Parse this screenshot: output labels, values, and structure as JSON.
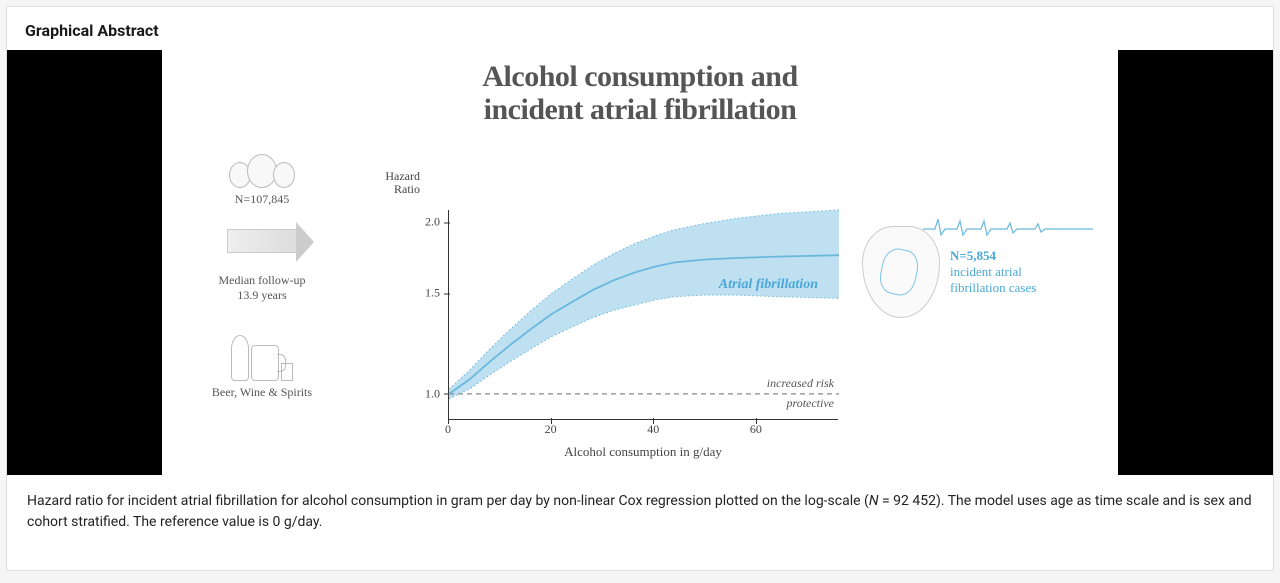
{
  "section_title": "Graphical Abstract",
  "figure": {
    "title_line1": "Alcohol consumption and",
    "title_line2": "incident atrial fibrillation",
    "title_color": "#555555",
    "title_fontsize": 30,
    "left": {
      "n_label": "N=107,845",
      "followup_line1": "Median follow-up",
      "followup_line2": "13.9 years",
      "drinks_label": "Beer, Wine & Spirits"
    },
    "right": {
      "n_label": "N=5,854",
      "text_line1": "incident atrial",
      "text_line2": "fibrillation cases",
      "text_color": "#4aa8d8"
    },
    "chart": {
      "type": "line",
      "y_title": "Hazard Ratio",
      "x_title": "Alcohol consumption in g/day",
      "curve_label": "Atrial fibrillation",
      "ref_upper_label": "increased risk",
      "ref_lower_label": "protective",
      "xlim": [
        0,
        76
      ],
      "ylim": [
        0.9,
        2.1
      ],
      "x_ticks": [
        0,
        20,
        40,
        60
      ],
      "y_ticks": [
        1.0,
        1.5,
        2.0
      ],
      "reference_y": 1.0,
      "line_color": "#6bb8dd",
      "band_color": "#a8d5ec",
      "band_opacity": 0.75,
      "axis_color": "#333333",
      "dash_color": "#888888",
      "label_fontsize": 12,
      "mean_curve": [
        {
          "x": 0,
          "y": 1.0
        },
        {
          "x": 4,
          "y": 1.06
        },
        {
          "x": 8,
          "y": 1.14
        },
        {
          "x": 12,
          "y": 1.22
        },
        {
          "x": 16,
          "y": 1.3
        },
        {
          "x": 20,
          "y": 1.38
        },
        {
          "x": 24,
          "y": 1.45
        },
        {
          "x": 28,
          "y": 1.52
        },
        {
          "x": 32,
          "y": 1.58
        },
        {
          "x": 36,
          "y": 1.63
        },
        {
          "x": 40,
          "y": 1.67
        },
        {
          "x": 44,
          "y": 1.7
        },
        {
          "x": 50,
          "y": 1.72
        },
        {
          "x": 56,
          "y": 1.73
        },
        {
          "x": 64,
          "y": 1.74
        },
        {
          "x": 76,
          "y": 1.75
        }
      ],
      "upper_curve": [
        {
          "x": 0,
          "y": 1.02
        },
        {
          "x": 4,
          "y": 1.1
        },
        {
          "x": 8,
          "y": 1.2
        },
        {
          "x": 12,
          "y": 1.3
        },
        {
          "x": 16,
          "y": 1.4
        },
        {
          "x": 20,
          "y": 1.5
        },
        {
          "x": 24,
          "y": 1.59
        },
        {
          "x": 28,
          "y": 1.68
        },
        {
          "x": 32,
          "y": 1.76
        },
        {
          "x": 36,
          "y": 1.83
        },
        {
          "x": 40,
          "y": 1.89
        },
        {
          "x": 44,
          "y": 1.94
        },
        {
          "x": 50,
          "y": 1.99
        },
        {
          "x": 56,
          "y": 2.03
        },
        {
          "x": 64,
          "y": 2.07
        },
        {
          "x": 76,
          "y": 2.1
        }
      ],
      "lower_curve": [
        {
          "x": 0,
          "y": 0.98
        },
        {
          "x": 4,
          "y": 1.02
        },
        {
          "x": 8,
          "y": 1.08
        },
        {
          "x": 12,
          "y": 1.14
        },
        {
          "x": 16,
          "y": 1.2
        },
        {
          "x": 20,
          "y": 1.26
        },
        {
          "x": 24,
          "y": 1.31
        },
        {
          "x": 28,
          "y": 1.36
        },
        {
          "x": 32,
          "y": 1.4
        },
        {
          "x": 36,
          "y": 1.43
        },
        {
          "x": 40,
          "y": 1.46
        },
        {
          "x": 44,
          "y": 1.48
        },
        {
          "x": 50,
          "y": 1.49
        },
        {
          "x": 56,
          "y": 1.49
        },
        {
          "x": 64,
          "y": 1.48
        },
        {
          "x": 76,
          "y": 1.47
        }
      ]
    }
  },
  "caption": {
    "prefix": "Hazard ratio for incident atrial fibrillation for alcohol consumption in gram per day by non-linear Cox regression plotted on the log-scale (",
    "n_italic": "N",
    "n_value": " = 92 452). The model uses age as time scale and is sex and cohort stratified. The reference value is 0 g/day."
  }
}
